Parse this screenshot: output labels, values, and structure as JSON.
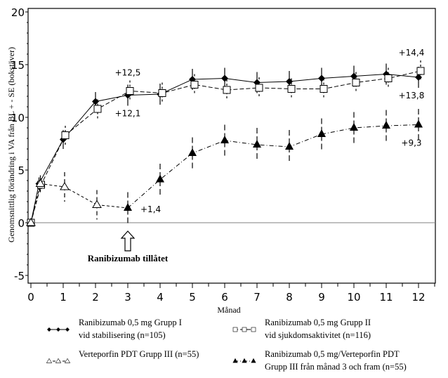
{
  "chart_data": {
    "type": "line",
    "title": "",
    "xlabel": "Månad",
    "ylabel": "Genomsnittlig förändring i VA från BL + - SE (bokstäver)",
    "xlim": [
      -0.17,
      12.5
    ],
    "ylim": [
      -5.7,
      20.4
    ],
    "xticks": [
      0,
      1,
      2,
      3,
      4,
      5,
      6,
      7,
      8,
      9,
      10,
      11,
      12
    ],
    "xtick_labels": [
      "0",
      "1",
      "2",
      "3",
      "4",
      "5",
      "6",
      "7",
      "8",
      "9",
      "10",
      "11",
      "12"
    ],
    "yticks": [
      -5,
      0,
      5,
      10,
      15,
      20
    ],
    "ytick_labels": [
      "-5",
      "0",
      "5",
      "10",
      "15",
      "20"
    ],
    "grid": false,
    "reference_line_y": 0,
    "series": [
      {
        "name": "Ranibizumab 0,5 mg Grupp I vid stabilisering (n=105)",
        "legend_lines": [
          "Ranibizumab 0,5 mg Grupp I",
          "vid stabilisering (n=105)"
        ],
        "marker": "filled-diamond",
        "line_style": "solid",
        "x": [
          0,
          0.25,
          1,
          2,
          3,
          4,
          5,
          6,
          7,
          8,
          9,
          10,
          11,
          12
        ],
        "values": [
          0,
          3.7,
          7.9,
          11.5,
          12.1,
          12.2,
          13.6,
          13.7,
          13.3,
          13.4,
          13.7,
          13.9,
          14.1,
          13.8
        ],
        "se": [
          0,
          0.6,
          0.9,
          0.9,
          1.0,
          1.0,
          1.0,
          1.0,
          1.0,
          1.0,
          1.0,
          1.0,
          1.0,
          1.0
        ]
      },
      {
        "name": "Ranibizumab 0,5 mg Grupp II vid sjukdomsaktivitet (n=116)",
        "legend_lines": [
          "Ranibizumab 0,5 mg Grupp II",
          "vid sjukdomsaktivitet (n=116)"
        ],
        "marker": "open-square",
        "line_style": "dashed",
        "x": [
          0,
          0.25,
          1,
          2,
          3,
          4,
          5,
          6,
          7,
          8,
          9,
          10,
          11,
          12
        ],
        "values": [
          0,
          3.6,
          8.3,
          10.8,
          12.5,
          12.3,
          13.1,
          12.6,
          12.8,
          12.7,
          12.7,
          13.3,
          13.7,
          14.4
        ],
        "se": [
          0,
          0.6,
          0.9,
          0.9,
          1.0,
          1.0,
          1.0,
          1.0,
          1.0,
          1.0,
          1.0,
          1.0,
          1.0,
          1.0
        ]
      },
      {
        "name": "Verteporfin PDT Grupp III (n=55)",
        "legend_lines": [
          "Verteporfin PDT Grupp III (n=55)"
        ],
        "marker": "open-triangle",
        "line_style": "dashed-short",
        "x": [
          0,
          0.25,
          1,
          2
        ],
        "values": [
          0,
          3.7,
          3.4,
          1.7
        ],
        "se": [
          0,
          0.8,
          1.4,
          1.4
        ]
      },
      {
        "name": "Ranibizumab 0,5 mg/Verteporfin PDT Grupp III från månad 3 och fram (n=55)",
        "legend_lines": [
          "Ranibizumab 0,5 mg/Verteporfin PDT",
          "Grupp III från månad 3 och fram (n=55)"
        ],
        "marker": "filled-triangle",
        "line_style": "dash-dot",
        "x": [
          3,
          4,
          5,
          6,
          7,
          8,
          9,
          10,
          11,
          12
        ],
        "values": [
          1.4,
          4.1,
          6.6,
          7.8,
          7.4,
          7.2,
          8.4,
          9.0,
          9.2,
          9.3
        ],
        "se": [
          1.5,
          1.5,
          1.5,
          1.5,
          1.6,
          1.6,
          1.5,
          1.5,
          1.5,
          1.5
        ]
      }
    ],
    "connector": {
      "from_series": 2,
      "from_x": 2,
      "to_series": 3,
      "to_x": 3
    },
    "annotations": [
      {
        "text": "+12,5",
        "x": 3,
        "y": 12.5,
        "position": "above",
        "series": 1
      },
      {
        "text": "+12,1",
        "x": 3,
        "y": 12.1,
        "position": "below",
        "series": 0
      },
      {
        "text": "+1,4",
        "x": 3,
        "y": 1.4,
        "position": "right",
        "series": 3
      },
      {
        "text": "+14,4",
        "x": 12,
        "y": 14.4,
        "position": "above",
        "series": 1
      },
      {
        "text": "+13,8",
        "x": 12,
        "y": 13.8,
        "position": "below",
        "series": 0
      },
      {
        "text": "+9,3",
        "x": 12,
        "y": 9.3,
        "position": "below",
        "series": 3
      }
    ],
    "arrow_annotation": {
      "text": "Ranibizumab tillåtet",
      "x": 3
    },
    "legend": {
      "placement": "bottom",
      "columns": 2
    }
  }
}
